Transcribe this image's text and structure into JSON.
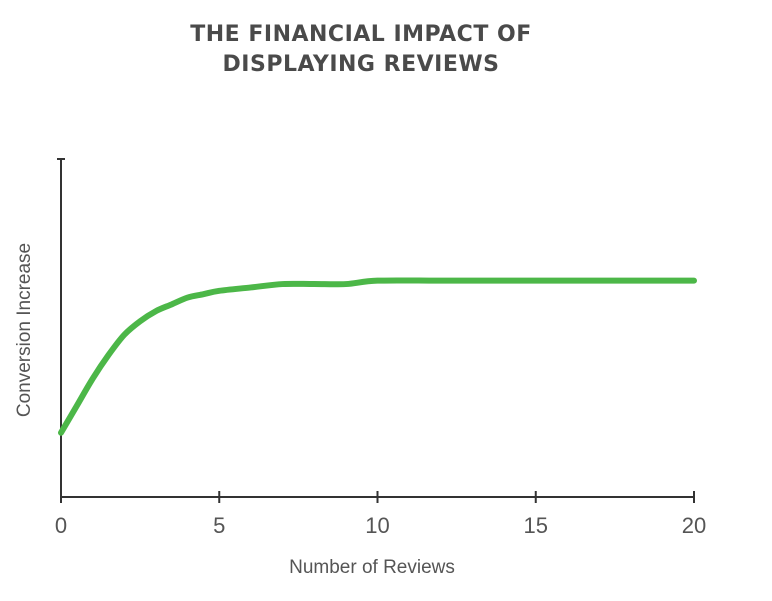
{
  "chart_data": {
    "type": "line",
    "title_line1": "THE FINANCIAL IMPACT OF",
    "title_line2": "DISPLAYING REVIEWS",
    "xlabel": "Number of Reviews",
    "ylabel": "Conversion Increase",
    "xlim": [
      0,
      20
    ],
    "ylim": [
      0,
      1
    ],
    "x_ticks": [
      "0",
      "5",
      "10",
      "15",
      "20"
    ],
    "grid": false,
    "line_color": "#4cb748",
    "axis_color": "#333333",
    "series": [
      {
        "x": [
          0,
          0.5,
          1,
          1.5,
          2,
          2.5,
          3,
          3.5,
          4,
          4.5,
          5,
          6,
          7,
          8,
          9,
          10,
          12,
          14,
          16,
          18,
          20
        ],
        "values": [
          0.19,
          0.27,
          0.35,
          0.42,
          0.48,
          0.52,
          0.55,
          0.57,
          0.59,
          0.6,
          0.61,
          0.62,
          0.63,
          0.63,
          0.63,
          0.64,
          0.64,
          0.64,
          0.64,
          0.64,
          0.64
        ]
      }
    ]
  }
}
